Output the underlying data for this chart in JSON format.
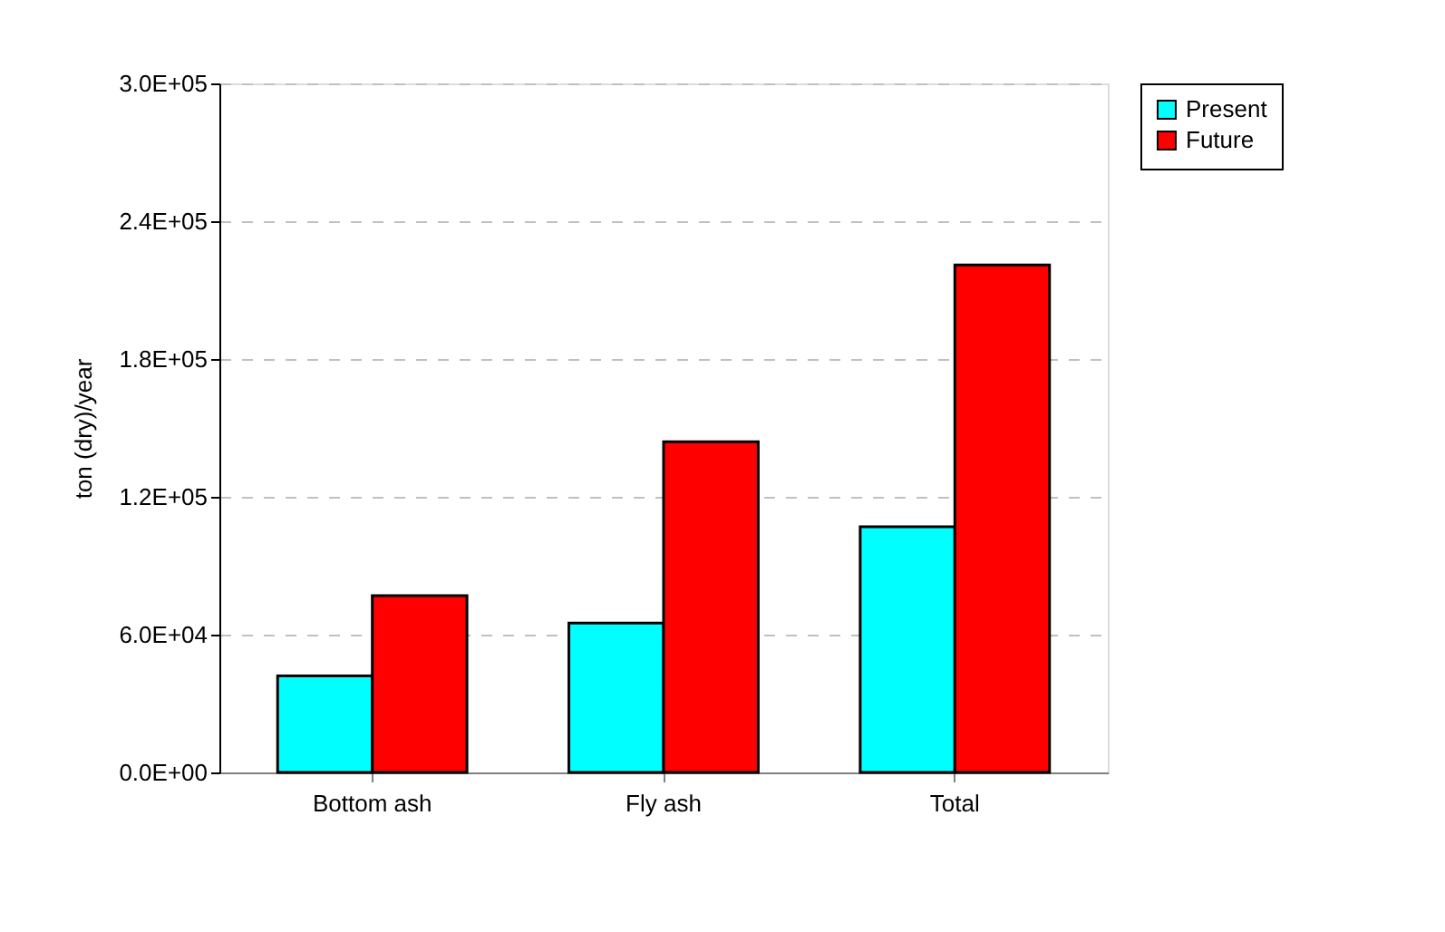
{
  "chart_data": {
    "type": "bar",
    "ylabel": "ton (dry)/year",
    "categories": [
      "Bottom ash",
      "Fly ash",
      "Total"
    ],
    "series": [
      {
        "name": "Present",
        "color": "#00ffff",
        "values": [
          42000,
          65000,
          107000
        ]
      },
      {
        "name": "Future",
        "color": "#ff0000",
        "values": [
          77000,
          144000,
          221000
        ]
      }
    ],
    "ylim": [
      0,
      300000
    ],
    "yticks": [
      {
        "value": 0,
        "label": "0.0E+00"
      },
      {
        "value": 60000,
        "label": "6.0E+04"
      },
      {
        "value": 120000,
        "label": "1.2E+05"
      },
      {
        "value": 180000,
        "label": "1.8E+05"
      },
      {
        "value": 240000,
        "label": "2.4E+05"
      },
      {
        "value": 300000,
        "label": "3.0E+05"
      }
    ],
    "grid": "y",
    "legend": "right"
  }
}
